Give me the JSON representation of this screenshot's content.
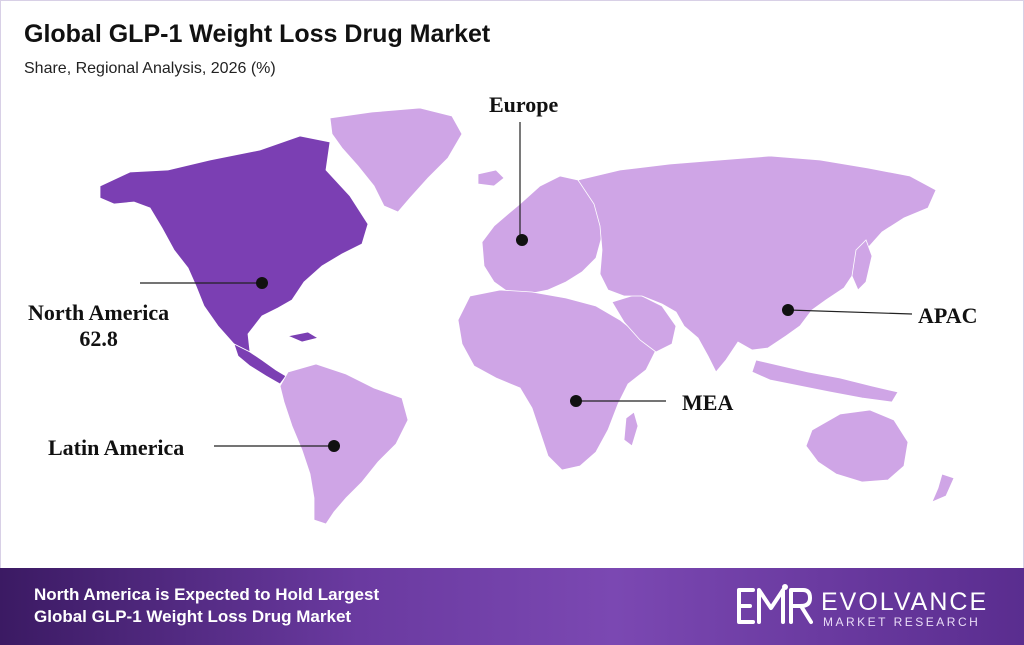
{
  "header": {
    "title": "Global GLP-1 Weight Loss Drug Market",
    "subtitle": "Share, Regional Analysis, 2026 (%)"
  },
  "colors": {
    "highlight_region": "#7b3fb3",
    "other_regions": "#cfa5e6",
    "marker": "#111111"
  },
  "regions": [
    {
      "id": "north_america",
      "label": "North America",
      "value": "62.8",
      "highlighted": true
    },
    {
      "id": "europe",
      "label": "Europe",
      "highlighted": false
    },
    {
      "id": "apac",
      "label": "APAC",
      "highlighted": false
    },
    {
      "id": "mea",
      "label": "MEA",
      "highlighted": false
    },
    {
      "id": "latin_america",
      "label": "Latin America",
      "highlighted": false
    }
  ],
  "footer": {
    "line1": "North America is Expected to Hold Largest",
    "line2": "Global GLP-1 Weight Loss Drug Market",
    "brand_name": "EVOLVANCE",
    "brand_sub": "MARKET RESEARCH"
  }
}
